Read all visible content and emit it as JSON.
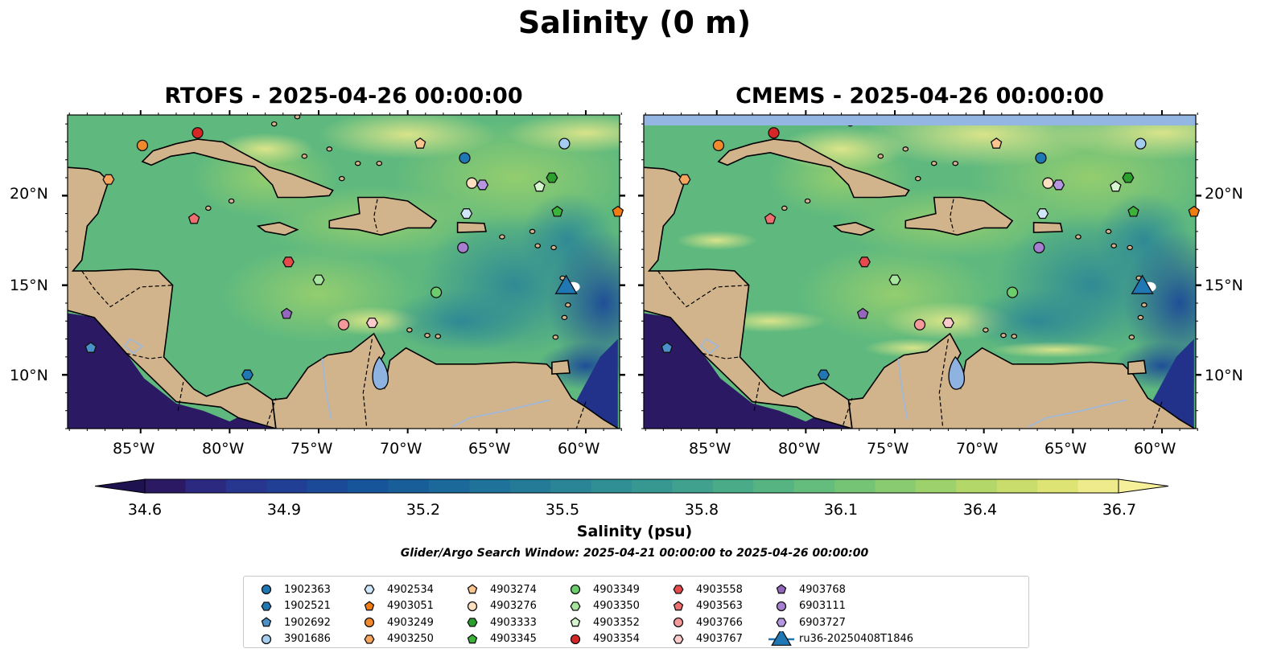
{
  "title": "Salinity (0 m)",
  "panels": [
    {
      "title": "RTOFS - 2025-04-26 00:00:00"
    },
    {
      "title": "CMEMS - 2025-04-26 00:00:00"
    }
  ],
  "axes": {
    "lat_labels": [
      "20°N",
      "15°N",
      "10°N"
    ],
    "lon_labels": [
      "85°W",
      "80°W",
      "75°W",
      "70°W",
      "65°W",
      "60°W"
    ],
    "lat_values": [
      20,
      15,
      10
    ],
    "lon_values": [
      -85,
      -80,
      -75,
      -70,
      -65,
      -60
    ],
    "lon_range": [
      -89,
      -58
    ],
    "lat_range": [
      7,
      24.5
    ]
  },
  "colorbar": {
    "label": "Salinity (psu)",
    "min": 34.6,
    "max": 36.7,
    "ticks": [
      "34.6",
      "34.9",
      "35.2",
      "35.5",
      "35.8",
      "36.1",
      "36.4",
      "36.7"
    ],
    "colors": [
      "#2b1a63",
      "#2c2a80",
      "#27368f",
      "#213f95",
      "#1b4a98",
      "#17559a",
      "#185f9a",
      "#1b689a",
      "#1f7299",
      "#247b98",
      "#2a8597",
      "#308e95",
      "#379892",
      "#3fa18e",
      "#4aab88",
      "#56b482",
      "#64bd7c",
      "#75c476",
      "#89cb70",
      "#9dd16c",
      "#b3d769",
      "#c8dd6b",
      "#dde474",
      "#eeeb8c"
    ]
  },
  "search_window": "Glider/Argo Search Window: 2025-04-21 00:00:00 to 2025-04-26 00:00:00",
  "colors": {
    "land": "#d2b48c",
    "ocean_low": "#2b1a63",
    "ocean_high": "#f6ed97",
    "lake": "#8fb3e0",
    "nodata": "#94b6e2"
  },
  "legend": [
    {
      "id": "1902363",
      "marker": "circle",
      "color": "#1f77b4"
    },
    {
      "id": "1902521",
      "marker": "hexagon",
      "color": "#1f77b4"
    },
    {
      "id": "1902692",
      "marker": "pentagon",
      "color": "#4a90c9"
    },
    {
      "id": "3901686",
      "marker": "circle",
      "color": "#a5cdf0"
    },
    {
      "id": "4902534",
      "marker": "hexagon",
      "color": "#cfe7f8"
    },
    {
      "id": "4903051",
      "marker": "pentagon",
      "color": "#f07c12"
    },
    {
      "id": "4903249",
      "marker": "circle",
      "color": "#f08a2c"
    },
    {
      "id": "4903250",
      "marker": "hexagon",
      "color": "#f5a55c"
    },
    {
      "id": "4903274",
      "marker": "pentagon",
      "color": "#fbc58f"
    },
    {
      "id": "4903276",
      "marker": "circle",
      "color": "#fde0c0"
    },
    {
      "id": "4903333",
      "marker": "hexagon",
      "color": "#2ca02c"
    },
    {
      "id": "4903345",
      "marker": "pentagon",
      "color": "#3bb33b"
    },
    {
      "id": "4903349",
      "marker": "circle",
      "color": "#6ccd6c"
    },
    {
      "id": "4903350",
      "marker": "hexagon",
      "color": "#a7e59e"
    },
    {
      "id": "4903352",
      "marker": "pentagon",
      "color": "#d5f5cf"
    },
    {
      "id": "4903354",
      "marker": "circle",
      "color": "#d62728"
    },
    {
      "id": "4903558",
      "marker": "hexagon",
      "color": "#e64a4a"
    },
    {
      "id": "4903563",
      "marker": "pentagon",
      "color": "#ee6f6f"
    },
    {
      "id": "4903766",
      "marker": "circle",
      "color": "#f49a9a"
    },
    {
      "id": "4903767",
      "marker": "hexagon",
      "color": "#fbcaca"
    },
    {
      "id": "4903768",
      "marker": "pentagon",
      "color": "#9467bd"
    },
    {
      "id": "6903111",
      "marker": "circle",
      "color": "#a77fd0"
    },
    {
      "id": "6903727",
      "marker": "hexagon",
      "color": "#b596e0"
    },
    {
      "id": "ru36-20250408T1846",
      "marker": "triangle-line",
      "color": "#1f77b4"
    }
  ],
  "floats": [
    {
      "id": "1902363",
      "lon": -66.8,
      "lat": 22.1
    },
    {
      "id": "1902521",
      "lon": -79.0,
      "lat": 10.0
    },
    {
      "id": "1902692",
      "lon": -87.8,
      "lat": 11.5
    },
    {
      "id": "3901686",
      "lon": -61.2,
      "lat": 22.9
    },
    {
      "id": "4902534",
      "lon": -66.7,
      "lat": 19.0
    },
    {
      "id": "4903051",
      "lon": -58.2,
      "lat": 19.1
    },
    {
      "id": "4903249",
      "lon": -84.9,
      "lat": 22.8
    },
    {
      "id": "4903250",
      "lon": -86.8,
      "lat": 20.9
    },
    {
      "id": "4903274",
      "lon": -69.3,
      "lat": 22.9
    },
    {
      "id": "4903276",
      "lon": -66.4,
      "lat": 20.7
    },
    {
      "id": "4903333",
      "lon": -61.9,
      "lat": 21.0
    },
    {
      "id": "4903345",
      "lon": -61.6,
      "lat": 19.1
    },
    {
      "id": "4903349",
      "lon": -68.4,
      "lat": 14.6
    },
    {
      "id": "4903350",
      "lon": -75.0,
      "lat": 15.3
    },
    {
      "id": "4903352",
      "lon": -62.6,
      "lat": 20.5
    },
    {
      "id": "4903354",
      "lon": -81.8,
      "lat": 23.5
    },
    {
      "id": "4903558",
      "lon": -76.7,
      "lat": 16.3
    },
    {
      "id": "4903563",
      "lon": -82.0,
      "lat": 18.7
    },
    {
      "id": "4903766",
      "lon": -73.6,
      "lat": 12.8
    },
    {
      "id": "4903767",
      "lon": -72.0,
      "lat": 12.9
    },
    {
      "id": "4903768",
      "lon": -76.8,
      "lat": 13.4
    },
    {
      "id": "6903111",
      "lon": -66.9,
      "lat": 17.1
    },
    {
      "id": "6903727",
      "lon": -65.8,
      "lat": 20.6
    },
    {
      "id": "ru36-20250408T1846",
      "lon": -61.1,
      "lat": 15.0
    }
  ]
}
